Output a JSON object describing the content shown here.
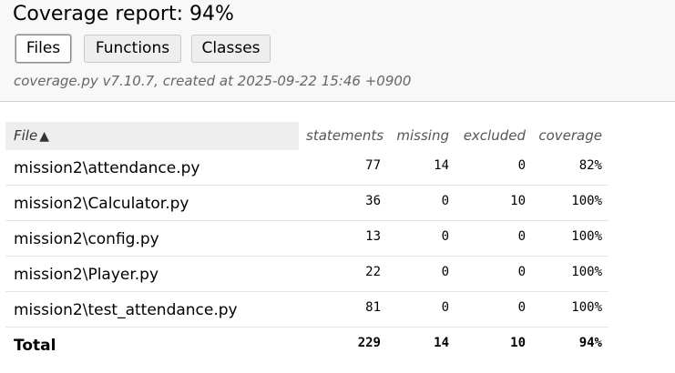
{
  "header": {
    "title": "Coverage report: 94%",
    "nav": [
      {
        "label": "Files",
        "active": true
      },
      {
        "label": "Functions",
        "active": false
      },
      {
        "label": "Classes",
        "active": false
      }
    ],
    "meta": "coverage.py v7.10.7, created at 2025-09-22 15:46 +0900"
  },
  "table": {
    "columns": {
      "file": "File",
      "statements": "statements",
      "missing": "missing",
      "excluded": "excluded",
      "coverage": "coverage"
    },
    "sort_icon": "triangle-up-icon",
    "sort_glyph": "▲",
    "rows": [
      {
        "file": "mission2\\attendance.py",
        "statements": "77",
        "missing": "14",
        "excluded": "0",
        "coverage": "82%"
      },
      {
        "file": "mission2\\Calculator.py",
        "statements": "36",
        "missing": "0",
        "excluded": "10",
        "coverage": "100%"
      },
      {
        "file": "mission2\\config.py",
        "statements": "13",
        "missing": "0",
        "excluded": "0",
        "coverage": "100%"
      },
      {
        "file": "mission2\\Player.py",
        "statements": "22",
        "missing": "0",
        "excluded": "0",
        "coverage": "100%"
      },
      {
        "file": "mission2\\test_attendance.py",
        "statements": "81",
        "missing": "0",
        "excluded": "0",
        "coverage": "100%"
      }
    ],
    "total": {
      "file": "Total",
      "statements": "229",
      "missing": "14",
      "excluded": "10",
      "coverage": "94%"
    }
  }
}
